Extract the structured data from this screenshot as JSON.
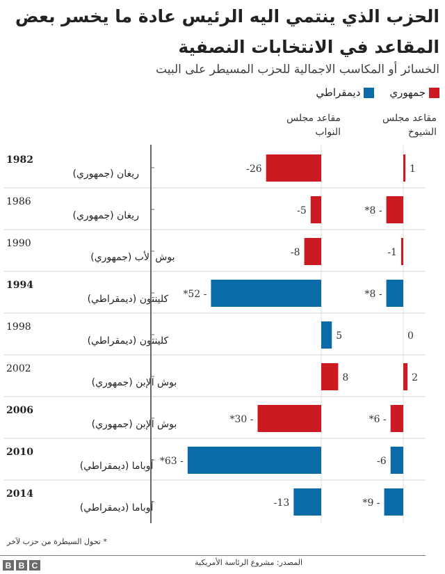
{
  "title": "الحزب الذي ينتمي اليه الرئيس عادة ما يخسر بعض المقاعد في الانتخابات النصفية",
  "subtitle": "الخسائر أو المكاسب الاجمالية للحزب المسيطر على البيت",
  "legend": [
    {
      "label": "جمهوري",
      "color": "#cc1a22"
    },
    {
      "label": "ديمقراطي",
      "color": "#0b6aa8"
    }
  ],
  "columns": {
    "house": "مقاعد مجلس النواب",
    "senate": "مقاعد مجلس الشيوخ"
  },
  "footnote": "* تحول السيطرة من حزب لآخر",
  "source": "المصدر: مشروع الرئاسة الأمريكية",
  "logo": "BBC",
  "chart_data": {
    "type": "bar",
    "orientation": "horizontal",
    "series_names": [
      "مقاعد مجلس النواب",
      "مقاعد مجلس الشيوخ"
    ],
    "rows": [
      {
        "year": "1982",
        "president": "ريغان (جمهوري)",
        "party": "rep",
        "bold": true,
        "house": -26,
        "senate": 1,
        "house_flip": false,
        "senate_flip": false
      },
      {
        "year": "1986",
        "president": "ريغان (جمهوري)",
        "party": "rep",
        "bold": false,
        "house": -5,
        "senate": -8,
        "house_flip": false,
        "senate_flip": true
      },
      {
        "year": "1990",
        "president": "بوش الأب (جمهوري)",
        "party": "rep",
        "bold": false,
        "house": -8,
        "senate": -1,
        "house_flip": false,
        "senate_flip": false
      },
      {
        "year": "1994",
        "president": "كلينتون (ديمقراطي)",
        "party": "dem",
        "bold": true,
        "house": -52,
        "senate": -8,
        "house_flip": true,
        "senate_flip": true
      },
      {
        "year": "1998",
        "president": "كلينتون (ديمقراطي)",
        "party": "dem",
        "bold": false,
        "house": 5,
        "senate": 0,
        "house_flip": false,
        "senate_flip": false
      },
      {
        "year": "2002",
        "president": "بوش الإبن (جمهوري)",
        "party": "rep",
        "bold": false,
        "house": 8,
        "senate": 2,
        "house_flip": false,
        "senate_flip": false
      },
      {
        "year": "2006",
        "president": "بوش الإبن (جمهوري)",
        "party": "rep",
        "bold": true,
        "house": -30,
        "senate": -6,
        "house_flip": true,
        "senate_flip": true
      },
      {
        "year": "2010",
        "president": "أوباما (ديمقراطي)",
        "party": "dem",
        "bold": true,
        "house": -63,
        "senate": -6,
        "house_flip": true,
        "senate_flip": false
      },
      {
        "year": "2014",
        "president": "أوباما (ديمقراطي)",
        "party": "dem",
        "bold": true,
        "house": -13,
        "senate": -9,
        "house_flip": false,
        "senate_flip": true
      }
    ]
  }
}
